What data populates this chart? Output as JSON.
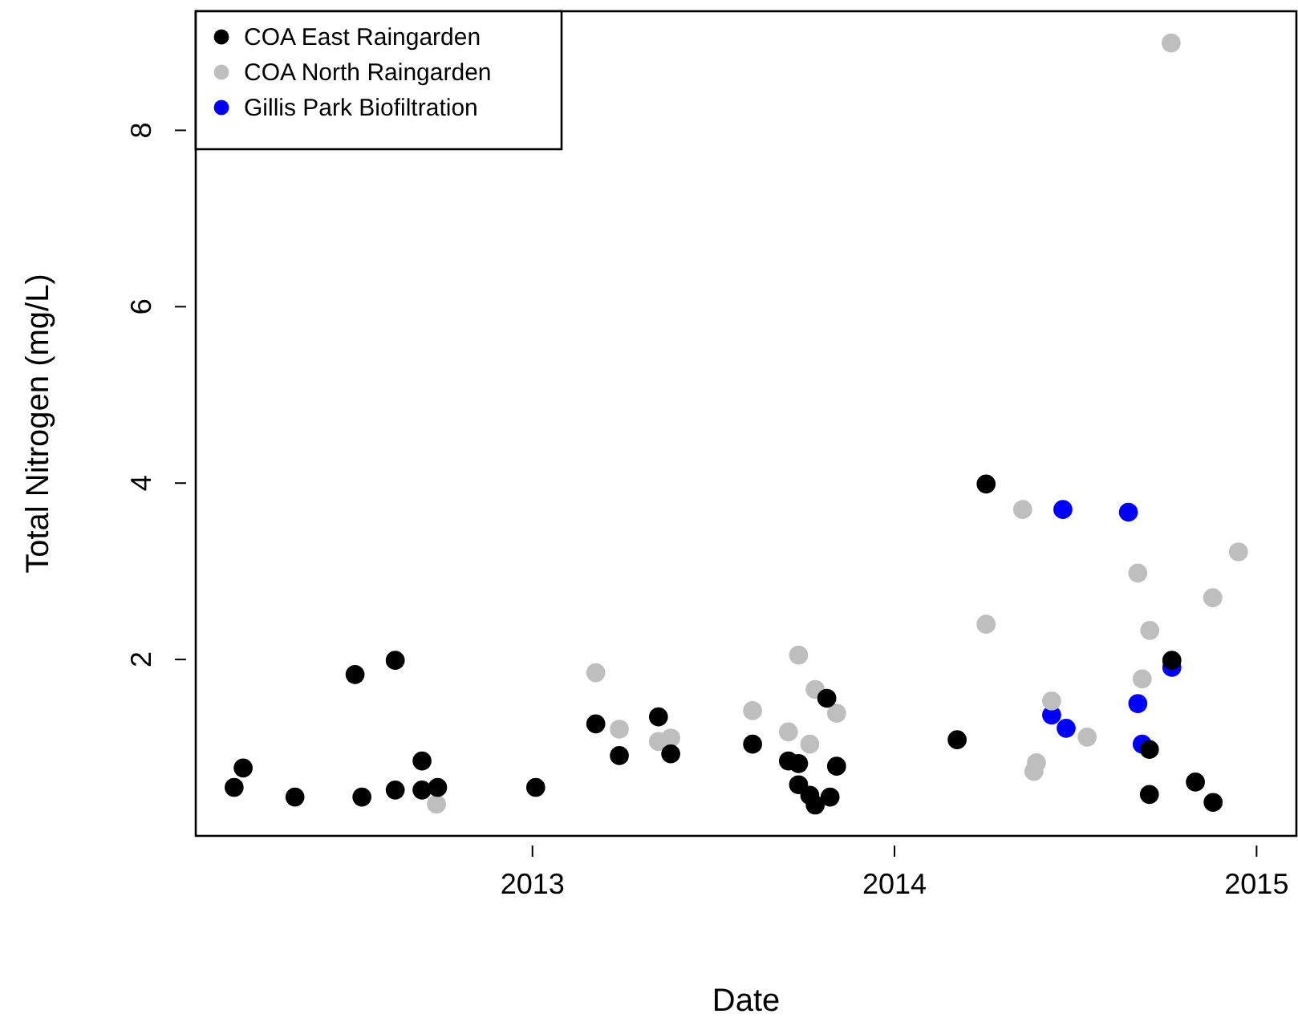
{
  "chart_data": {
    "type": "scatter",
    "xlabel": "Date",
    "ylabel": "Total Nitrogen (mg/L)",
    "xlim": [
      2012.07,
      2015.11
    ],
    "ylim": [
      0,
      9.35
    ],
    "xticks": [
      2013,
      2014,
      2015
    ],
    "yticks": [
      2,
      4,
      6,
      8
    ],
    "grid": false,
    "legend": "top left",
    "marker": "circle",
    "series": [
      {
        "name": "COA East Raingarden",
        "color": "#000000",
        "x": [
          2012.176,
          2012.201,
          2012.344,
          2012.51,
          2012.529,
          2012.621,
          2012.621,
          2012.695,
          2012.695,
          2012.738,
          2013.009,
          2013.175,
          2013.24,
          2013.348,
          2013.382,
          2013.608,
          2013.707,
          2013.735,
          2013.735,
          2013.766,
          2013.781,
          2013.813,
          2013.84,
          2013.822,
          2014.173,
          2014.253,
          2014.704,
          2014.704,
          2014.766,
          2014.831,
          2014.88
        ],
        "values": [
          0.55,
          0.77,
          0.44,
          1.83,
          0.44,
          1.99,
          0.52,
          0.85,
          0.52,
          0.55,
          0.55,
          1.27,
          0.91,
          1.35,
          0.93,
          1.04,
          0.85,
          0.82,
          0.58,
          0.46,
          0.35,
          1.56,
          0.79,
          0.44,
          1.09,
          3.99,
          0.98,
          0.47,
          1.99,
          0.61,
          0.38
        ]
      },
      {
        "name": "COA North Raingarden",
        "color": "#bebebe",
        "x": [
          2012.735,
          2013.175,
          2013.24,
          2013.348,
          2013.382,
          2013.608,
          2013.735,
          2013.707,
          2013.766,
          2013.781,
          2013.84,
          2014.253,
          2014.354,
          2014.434,
          2014.532,
          2014.392,
          2014.385,
          2014.672,
          2014.705,
          2014.684,
          2014.879,
          2014.95,
          2014.764
        ],
        "values": [
          0.36,
          1.85,
          1.21,
          1.07,
          1.11,
          1.42,
          2.05,
          1.18,
          1.04,
          1.66,
          1.39,
          2.4,
          3.7,
          1.53,
          1.12,
          0.83,
          0.73,
          2.98,
          2.33,
          1.78,
          2.7,
          3.22,
          8.99
        ]
      },
      {
        "name": "Gillis Park Biofiltration",
        "color": "#0000ff",
        "x": [
          2014.465,
          2014.646,
          2014.434,
          2014.474,
          2014.672,
          2014.684,
          2014.766
        ],
        "values": [
          3.7,
          3.67,
          1.37,
          1.22,
          1.5,
          1.04,
          1.91
        ]
      }
    ]
  }
}
